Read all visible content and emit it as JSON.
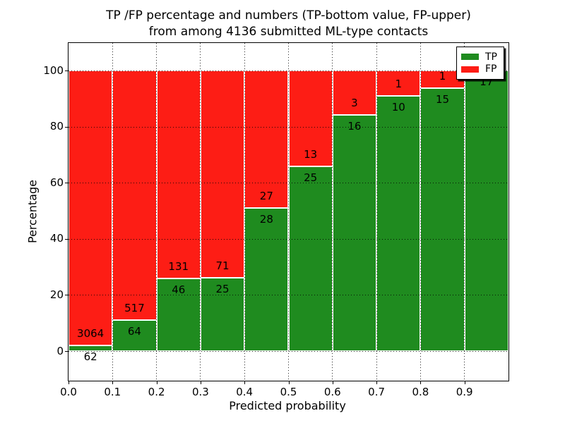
{
  "title": {
    "line1": "TP /FP percentage and numbers (TP-bottom value, FP-upper)",
    "line2": "from among 4136 submitted ML-type contacts"
  },
  "axes": {
    "xlabel": "Predicted probability",
    "ylabel": "Percentage",
    "xtick_labels": [
      "0.0",
      "0.1",
      "0.2",
      "0.3",
      "0.4",
      "0.5",
      "0.6",
      "0.7",
      "0.8",
      "0.9"
    ],
    "ytick_labels": [
      "0",
      "20",
      "40",
      "60",
      "80",
      "100"
    ],
    "ytick_values": [
      0,
      20,
      40,
      60,
      80,
      100
    ]
  },
  "legend": {
    "items": [
      {
        "label": "TP",
        "color": "#1f8b1f"
      },
      {
        "label": "FP",
        "color": "#fd1d15"
      }
    ]
  },
  "colors": {
    "tp": "#1f8b1f",
    "fp": "#fd1d15",
    "bar_edge": "#ffffff",
    "grid": "#000000"
  },
  "chart_data": {
    "type": "bar",
    "stacked": true,
    "normalized_to_percent": true,
    "title": "TP /FP percentage and numbers (TP-bottom value, FP-upper) from among 4136 submitted ML-type contacts",
    "xlabel": "Predicted probability",
    "ylabel": "Percentage",
    "xlim": [
      0.0,
      1.0
    ],
    "ylim": [
      -11,
      110
    ],
    "grid": "dotted",
    "legend_position": "upper right",
    "bin_edges": [
      0.0,
      0.1,
      0.2,
      0.3,
      0.4,
      0.5,
      0.6,
      0.7,
      0.8,
      0.9,
      1.0
    ],
    "series": [
      {
        "name": "TP",
        "counts": [
          62,
          64,
          46,
          25,
          28,
          25,
          16,
          10,
          15,
          17
        ]
      },
      {
        "name": "FP",
        "counts": [
          3064,
          517,
          131,
          71,
          27,
          13,
          3,
          1,
          1,
          0
        ]
      }
    ],
    "tp_percent": [
      1.98,
      11.02,
      25.99,
      26.04,
      50.91,
      65.79,
      84.21,
      90.91,
      93.75,
      100.0
    ],
    "total_contacts": 4136
  }
}
